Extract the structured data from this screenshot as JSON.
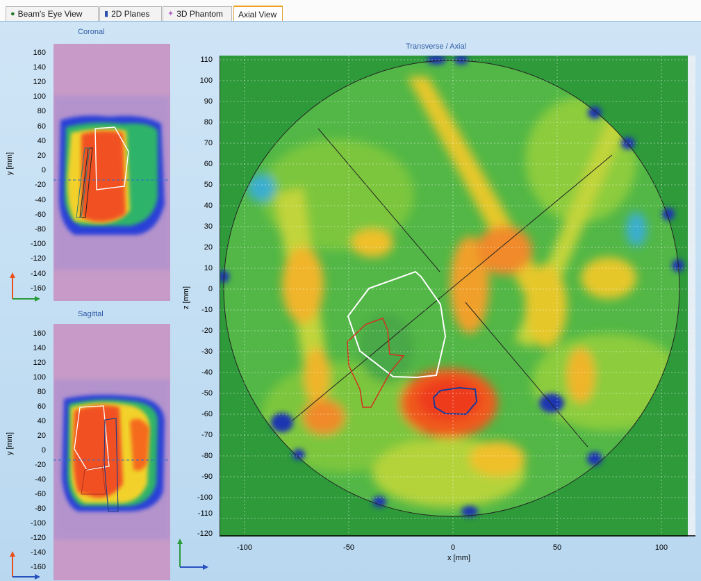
{
  "tabs": [
    {
      "label": "Beam's Eye View",
      "icon": "globe-icon",
      "active": false
    },
    {
      "label": "2D Planes",
      "icon": "bar-chart-icon",
      "active": false
    },
    {
      "label": "3D Phantom",
      "icon": "wand-icon",
      "active": false
    },
    {
      "label": "Axial View",
      "icon": "",
      "active": true
    }
  ],
  "coronal": {
    "title": "Coronal",
    "ylabel": "y [mm]",
    "yticks": [
      "160",
      "140",
      "120",
      "100",
      "80",
      "60",
      "40",
      "20",
      "0",
      "-20",
      "-40",
      "-60",
      "-80",
      "-100",
      "-120",
      "-140",
      "-160"
    ]
  },
  "sagittal": {
    "title": "Sagittal",
    "ylabel": "y [mm]",
    "yticks": [
      "160",
      "140",
      "120",
      "100",
      "80",
      "60",
      "40",
      "20",
      "0",
      "-20",
      "-40",
      "-60",
      "-80",
      "-100",
      "-120",
      "-140",
      "-160"
    ]
  },
  "axial": {
    "title": "Transverse / Axial",
    "xlabel": "x [mm]",
    "zlabel": "z [mm]",
    "zticks": [
      "110",
      "100",
      "90",
      "80",
      "70",
      "60",
      "50",
      "40",
      "30",
      "20",
      "10",
      "0",
      "-10",
      "-20",
      "-30",
      "-40",
      "-50",
      "-60",
      "-70",
      "-80",
      "-90",
      "-100",
      "-110",
      "-120"
    ],
    "xticks": [
      "-100",
      "-50",
      "0",
      "50",
      "100"
    ]
  },
  "colors": {
    "panel_bg": "#c4def3",
    "title_blue": "#2e5aa4",
    "phantom_pink": "#c79ac7",
    "dose_green": "#2e9a3a",
    "active_tab_border": "#f0a020"
  }
}
